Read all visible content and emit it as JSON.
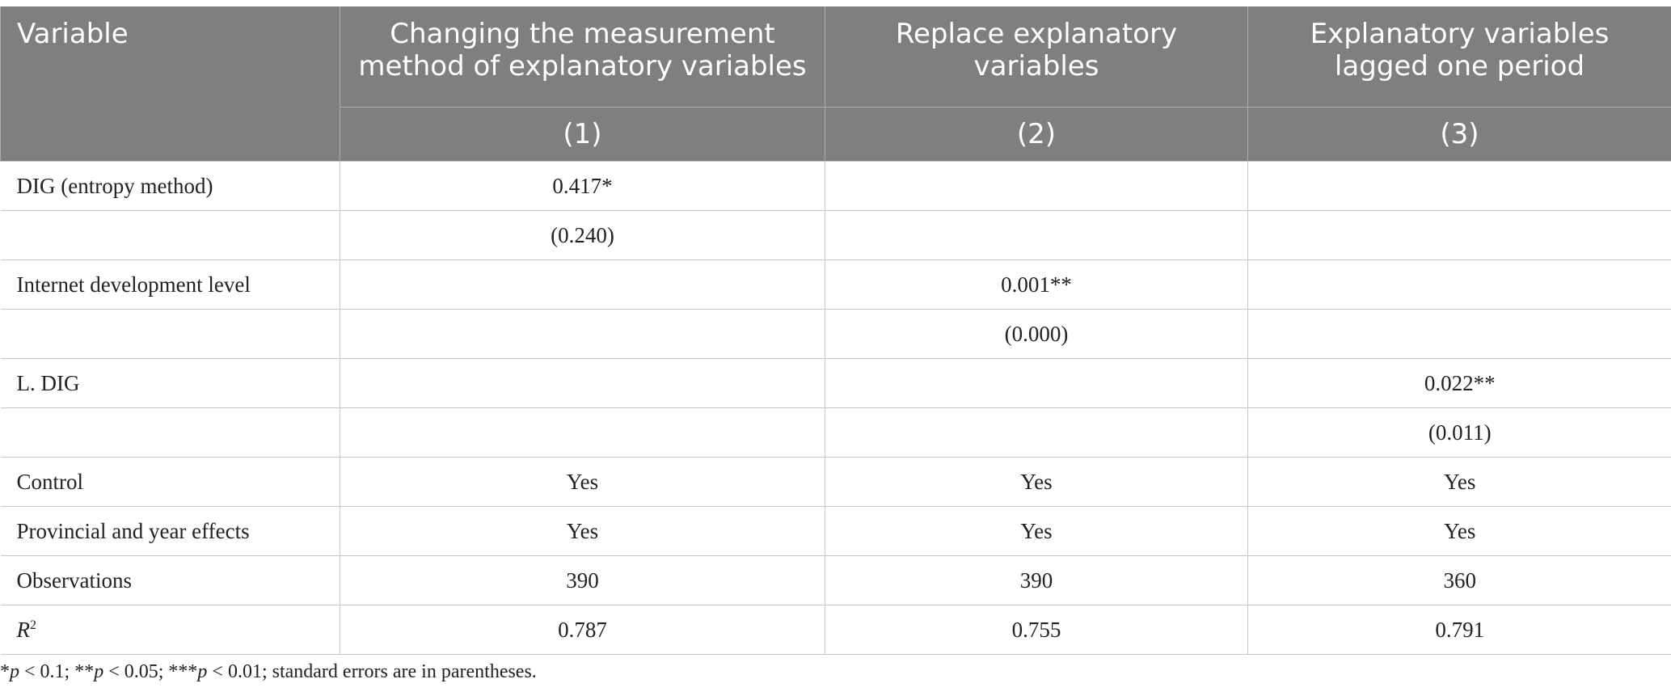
{
  "table": {
    "headers": {
      "variable": "Variable",
      "columns": [
        {
          "title": "Changing the measurement method of explanatory variables",
          "number": "(1)"
        },
        {
          "title": "Replace explanatory variables",
          "number": "(2)"
        },
        {
          "title": "Explanatory variables lagged one period",
          "number": "(3)"
        }
      ]
    },
    "rows": [
      {
        "label": "DIG (entropy method)",
        "cells": [
          "0.417*",
          "",
          ""
        ]
      },
      {
        "label": "",
        "cells": [
          "(0.240)",
          "",
          ""
        ]
      },
      {
        "label": "Internet development level",
        "cells": [
          "",
          "0.001**",
          ""
        ]
      },
      {
        "label": "",
        "cells": [
          "",
          "(0.000)",
          ""
        ]
      },
      {
        "label": "L. DIG",
        "cells": [
          "",
          "",
          "0.022**"
        ]
      },
      {
        "label": "",
        "cells": [
          "",
          "",
          "(0.011)"
        ]
      },
      {
        "label": "Control",
        "cells": [
          "Yes",
          "Yes",
          "Yes"
        ]
      },
      {
        "label": "Provincial and year effects",
        "cells": [
          "Yes",
          "Yes",
          "Yes"
        ]
      },
      {
        "label": "Observations",
        "cells": [
          "390",
          "390",
          "360"
        ]
      }
    ],
    "r2_row": {
      "label_var": "R",
      "label_sup": "2",
      "cells": [
        "0.787",
        "0.755",
        "0.791"
      ]
    }
  },
  "footnote": {
    "star1": "*",
    "p1": "p",
    "t1": " < 0.1; **",
    "p2": "p",
    "t2": " < 0.05; ***",
    "p3": "p",
    "t3": " < 0.01; standard errors are in parentheses."
  }
}
